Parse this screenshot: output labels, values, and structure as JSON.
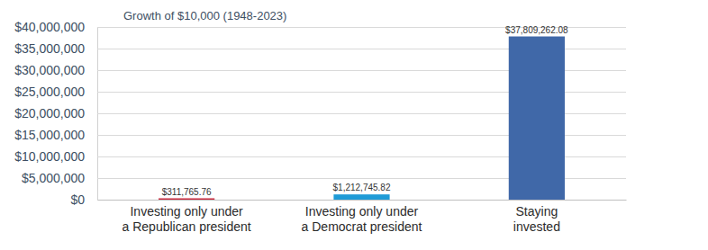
{
  "chart_data": {
    "type": "bar",
    "title": "Growth of $10,000 (1948-2023)",
    "categories": [
      "Investing only under\na Republican president",
      "Investing only under\na Democrat president",
      "Staying\ninvested"
    ],
    "values": [
      311765.76,
      1212745.82,
      37809262.08
    ],
    "value_labels": [
      "$311,765.76",
      "$1,212,745.82",
      "$37,809,262.08"
    ],
    "colors": [
      "#c8283c",
      "#1f9bd7",
      "#4068a8"
    ],
    "ylim": [
      0,
      40000000
    ],
    "yticks": [
      {
        "value": 0,
        "label": "$0"
      },
      {
        "value": 5000000,
        "label": "$5,000,000"
      },
      {
        "value": 10000000,
        "label": "$10,000,000"
      },
      {
        "value": 15000000,
        "label": "$15,000,000"
      },
      {
        "value": 20000000,
        "label": "$20,000,000"
      },
      {
        "value": 25000000,
        "label": "$25,000,000"
      },
      {
        "value": 30000000,
        "label": "$30,000,000"
      },
      {
        "value": 35000000,
        "label": "$35,000,000"
      },
      {
        "value": 40000000,
        "label": "$40,000,000"
      }
    ],
    "grid": true,
    "data_labels": true
  }
}
